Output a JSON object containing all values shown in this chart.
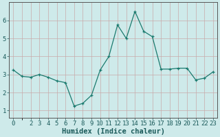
{
  "x": [
    0,
    1,
    2,
    3,
    4,
    5,
    6,
    7,
    8,
    9,
    10,
    11,
    12,
    13,
    14,
    15,
    16,
    17,
    18,
    19,
    20,
    21,
    22,
    23
  ],
  "y": [
    3.25,
    2.9,
    2.85,
    3.0,
    2.85,
    2.65,
    2.55,
    1.25,
    1.4,
    1.85,
    3.25,
    4.0,
    5.75,
    5.0,
    6.5,
    5.4,
    5.1,
    3.3,
    3.3,
    3.35,
    3.35,
    2.7,
    2.8,
    3.15
  ],
  "xlabel": "Humidex (Indice chaleur)",
  "xlim_min": -0.5,
  "xlim_max": 23.5,
  "ylim_min": 0.6,
  "ylim_max": 7.0,
  "yticks": [
    1,
    2,
    3,
    4,
    5,
    6
  ],
  "xticks": [
    0,
    2,
    3,
    4,
    5,
    6,
    7,
    8,
    9,
    10,
    11,
    12,
    13,
    14,
    15,
    16,
    17,
    18,
    19,
    20,
    21,
    22,
    23
  ],
  "line_color": "#1a7a6e",
  "bg_color": "#ceeaea",
  "grid_color_major": "#c8aaaa",
  "grid_color_minor": "#c8aaaa",
  "xlabel_fontsize": 7.5,
  "tick_fontsize": 6.5,
  "tick_color": "#1a5a5a",
  "xlabel_color": "#1a5a5a"
}
